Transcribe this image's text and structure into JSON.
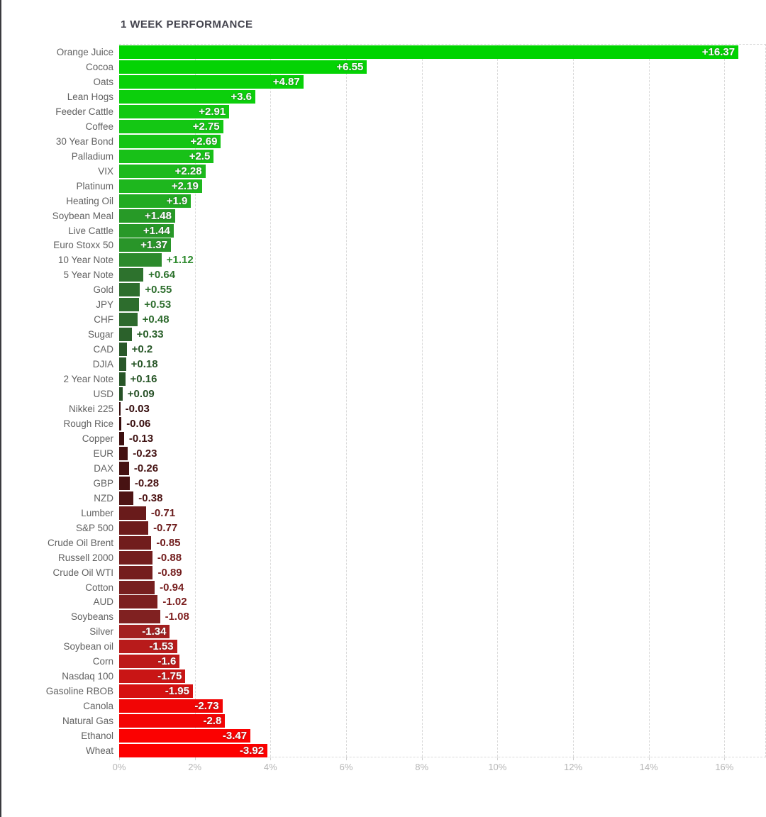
{
  "chart_data": {
    "type": "bar",
    "orientation": "horizontal",
    "title": "1 WEEK PERFORMANCE",
    "note": "Bars extend rightward by absolute value; color encodes sign and magnitude (bright green = most positive, bright red = most negative).",
    "x_axis": {
      "ticks": [
        "0%",
        "2%",
        "4%",
        "6%",
        "8%",
        "10%",
        "12%",
        "14%",
        "16%"
      ],
      "tick_values": [
        0,
        2,
        4,
        6,
        8,
        10,
        12,
        14,
        16
      ],
      "range": [
        0,
        17.1
      ],
      "unit": "%"
    },
    "grid": {
      "style": "dashed-vertical",
      "color": "#dadada",
      "legend": "none"
    },
    "colors": {
      "title_text": "#45454f",
      "category_text": "#616161",
      "tick_text": "#b5b5b5",
      "value_inside_text": "#ffffff",
      "background": "#ffffff",
      "window_edge": "#3a3a3f"
    },
    "items": [
      {
        "label": "Orange Juice",
        "value": 16.37,
        "display": "+16.37",
        "color": "#00d400"
      },
      {
        "label": "Cocoa",
        "value": 6.55,
        "display": "+6.55",
        "color": "#04d304"
      },
      {
        "label": "Oats",
        "value": 4.87,
        "display": "+4.87",
        "color": "#08d108"
      },
      {
        "label": "Lean Hogs",
        "value": 3.6,
        "display": "+3.6",
        "color": "#0ccf0c"
      },
      {
        "label": "Feeder Cattle",
        "value": 2.91,
        "display": "+2.91",
        "color": "#12c912"
      },
      {
        "label": "Coffee",
        "value": 2.75,
        "display": "+2.75",
        "color": "#14c714"
      },
      {
        "label": "30 Year Bond",
        "value": 2.69,
        "display": "+2.69",
        "color": "#15c515"
      },
      {
        "label": "Palladium",
        "value": 2.5,
        "display": "+2.5",
        "color": "#18c118"
      },
      {
        "label": "VIX",
        "value": 2.28,
        "display": "+2.28",
        "color": "#1cba1c"
      },
      {
        "label": "Platinum",
        "value": 2.19,
        "display": "+2.19",
        "color": "#1eb71e"
      },
      {
        "label": "Heating Oil",
        "value": 1.9,
        "display": "+1.9",
        "color": "#22ab22"
      },
      {
        "label": "Soybean Meal",
        "value": 1.48,
        "display": "+1.48",
        "color": "#279a27"
      },
      {
        "label": "Live Cattle",
        "value": 1.44,
        "display": "+1.44",
        "color": "#289828"
      },
      {
        "label": "Euro Stoxx 50",
        "value": 1.37,
        "display": "+1.37",
        "color": "#299529"
      },
      {
        "label": "10 Year Note",
        "value": 1.12,
        "display": "+1.12",
        "color": "#2c8a2c"
      },
      {
        "label": "5 Year Note",
        "value": 0.64,
        "display": "+0.64",
        "color": "#2d722d"
      },
      {
        "label": "Gold",
        "value": 0.55,
        "display": "+0.55",
        "color": "#2d6e2d"
      },
      {
        "label": "JPY",
        "value": 0.53,
        "display": "+0.53",
        "color": "#2d6d2d"
      },
      {
        "label": "CHF",
        "value": 0.48,
        "display": "+0.48",
        "color": "#2d6a2d"
      },
      {
        "label": "Sugar",
        "value": 0.33,
        "display": "+0.33",
        "color": "#2b612b"
      },
      {
        "label": "CAD",
        "value": 0.2,
        "display": "+0.2",
        "color": "#295829"
      },
      {
        "label": "DJIA",
        "value": 0.18,
        "display": "+0.18",
        "color": "#295729"
      },
      {
        "label": "2 Year Note",
        "value": 0.16,
        "display": "+0.16",
        "color": "#285628"
      },
      {
        "label": "USD",
        "value": 0.09,
        "display": "+0.09",
        "color": "#265026"
      },
      {
        "label": "Nikkei 225",
        "value": -0.03,
        "display": "-0.03",
        "color": "#340c0c"
      },
      {
        "label": "Rough Rice",
        "value": -0.06,
        "display": "-0.06",
        "color": "#370d0d"
      },
      {
        "label": "Copper",
        "value": -0.13,
        "display": "-0.13",
        "color": "#3c0f0f"
      },
      {
        "label": "EUR",
        "value": -0.23,
        "display": "-0.23",
        "color": "#431111"
      },
      {
        "label": "DAX",
        "value": -0.26,
        "display": "-0.26",
        "color": "#451212"
      },
      {
        "label": "GBP",
        "value": -0.28,
        "display": "-0.28",
        "color": "#471212"
      },
      {
        "label": "NZD",
        "value": -0.38,
        "display": "-0.38",
        "color": "#4e1414"
      },
      {
        "label": "Lumber",
        "value": -0.71,
        "display": "-0.71",
        "color": "#691b1b"
      },
      {
        "label": "S&P 500",
        "value": -0.77,
        "display": "-0.77",
        "color": "#6d1c1c"
      },
      {
        "label": "Crude Oil Brent",
        "value": -0.85,
        "display": "-0.85",
        "color": "#711d1d"
      },
      {
        "label": "Russell 2000",
        "value": -0.88,
        "display": "-0.88",
        "color": "#731e1e"
      },
      {
        "label": "Crude Oil WTI",
        "value": -0.89,
        "display": "-0.89",
        "color": "#741e1e"
      },
      {
        "label": "Cotton",
        "value": -0.94,
        "display": "-0.94",
        "color": "#771f1f"
      },
      {
        "label": "AUD",
        "value": -1.02,
        "display": "-1.02",
        "color": "#7c2020"
      },
      {
        "label": "Soybeans",
        "value": -1.08,
        "display": "-1.08",
        "color": "#802121"
      },
      {
        "label": "Silver",
        "value": -1.34,
        "display": "-1.34",
        "color": "#a32020"
      },
      {
        "label": "Soybean oil",
        "value": -1.53,
        "display": "-1.53",
        "color": "#b81b1b"
      },
      {
        "label": "Corn",
        "value": -1.6,
        "display": "-1.6",
        "color": "#bd1919"
      },
      {
        "label": "Nasdaq 100",
        "value": -1.75,
        "display": "-1.75",
        "color": "#c91515"
      },
      {
        "label": "Gasoline RBOB",
        "value": -1.95,
        "display": "-1.95",
        "color": "#d61111"
      },
      {
        "label": "Canola",
        "value": -2.73,
        "display": "-2.73",
        "color": "#f20505"
      },
      {
        "label": "Natural Gas",
        "value": -2.8,
        "display": "-2.8",
        "color": "#f40404"
      },
      {
        "label": "Ethanol",
        "value": -3.47,
        "display": "-3.47",
        "color": "#fb0101"
      },
      {
        "label": "Wheat",
        "value": -3.92,
        "display": "-3.92",
        "color": "#fd0000"
      }
    ]
  }
}
